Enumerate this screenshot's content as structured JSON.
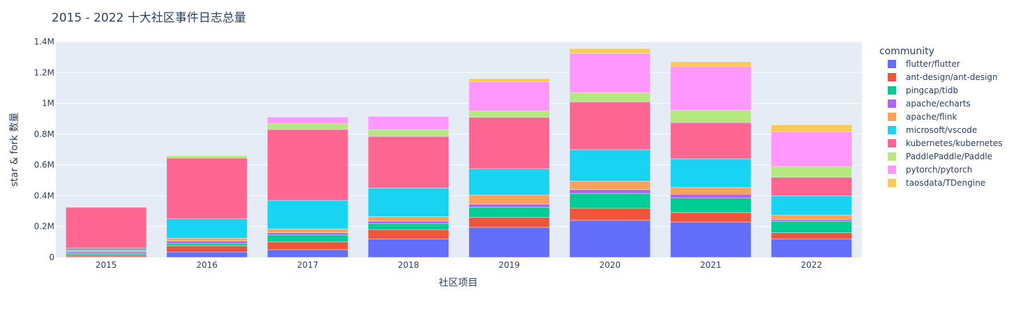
{
  "chart_data": {
    "type": "bar",
    "stacked": true,
    "title": "2015 - 2022 十大社区事件日志总量",
    "xlabel": "社区项目",
    "ylabel": "star & fork 数量",
    "ylim": [
      0,
      1400000
    ],
    "yticks": [
      0,
      200000,
      400000,
      600000,
      800000,
      1000000,
      1200000,
      1400000
    ],
    "ytick_labels": [
      "0",
      "0.2M",
      "0.4M",
      "0.6M",
      "0.8M",
      "1M",
      "1.2M",
      "1.4M"
    ],
    "categories": [
      "2015",
      "2016",
      "2017",
      "2018",
      "2019",
      "2020",
      "2021",
      "2022"
    ],
    "grid": true,
    "legend_title": "community",
    "legend_position": "right",
    "series": [
      {
        "name": "flutter/flutter",
        "color": "#636efa",
        "values": [
          5000,
          35000,
          50000,
          120000,
          195000,
          240000,
          230000,
          120000
        ]
      },
      {
        "name": "ant-design/ant-design",
        "color": "#ef553b",
        "values": [
          10000,
          40000,
          50000,
          60000,
          65000,
          80000,
          60000,
          40000
        ]
      },
      {
        "name": "pingcap/tidb",
        "color": "#00cc96",
        "values": [
          10000,
          15000,
          45000,
          40000,
          65000,
          95000,
          95000,
          75000
        ]
      },
      {
        "name": "apache/echarts",
        "color": "#ab63fa",
        "values": [
          10000,
          15000,
          15000,
          15000,
          20000,
          25000,
          25000,
          10000
        ]
      },
      {
        "name": "apache/flink",
        "color": "#ffa15a",
        "values": [
          10000,
          20000,
          25000,
          30000,
          60000,
          55000,
          45000,
          30000
        ]
      },
      {
        "name": "microsoft/vscode",
        "color": "#19d3f3",
        "values": [
          15000,
          125000,
          185000,
          185000,
          170000,
          205000,
          185000,
          125000
        ]
      },
      {
        "name": "kubernetes/kubernetes",
        "color": "#ff6692",
        "values": [
          265000,
          395000,
          460000,
          335000,
          335000,
          310000,
          235000,
          120000
        ]
      },
      {
        "name": "PaddlePaddle/Paddle",
        "color": "#b6e880",
        "values": [
          0,
          15000,
          40000,
          45000,
          40000,
          60000,
          80000,
          70000
        ]
      },
      {
        "name": "pytorch/pytorch",
        "color": "#ff97ff",
        "values": [
          0,
          0,
          40000,
          85000,
          190000,
          255000,
          285000,
          225000
        ]
      },
      {
        "name": "taosdata/TDengine",
        "color": "#fecb52",
        "values": [
          0,
          0,
          0,
          0,
          20000,
          30000,
          30000,
          45000
        ]
      }
    ]
  }
}
